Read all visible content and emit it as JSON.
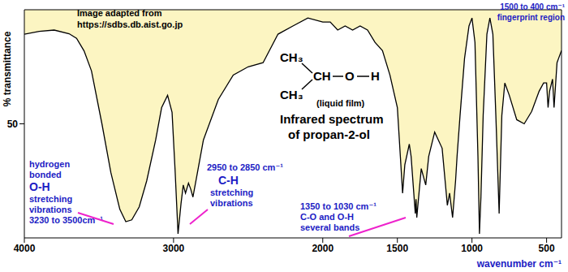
{
  "chart_data": {
    "type": "line",
    "color": "#000000",
    "grid": false,
    "x_label": "wavenumber cm⁻¹",
    "y_label": "% transmittance",
    "xlim": [
      4000,
      400
    ],
    "ylim": [
      0,
      100
    ],
    "xticks": [
      4000,
      3000,
      2000,
      1500,
      1000,
      500
    ],
    "yticks": [
      50
    ],
    "x": [
      4000,
      3900,
      3800,
      3700,
      3650,
      3600,
      3550,
      3480,
      3420,
      3360,
      3320,
      3280,
      3230,
      3180,
      3120,
      3080,
      3040,
      3010,
      2990,
      2970,
      2950,
      2935,
      2920,
      2900,
      2885,
      2870,
      2840,
      2800,
      2700,
      2600,
      2500,
      2400,
      2300,
      2200,
      2100,
      2000,
      1950,
      1900,
      1850,
      1800,
      1750,
      1700,
      1650,
      1600,
      1550,
      1500,
      1480,
      1465,
      1450,
      1420,
      1408,
      1380,
      1375,
      1370,
      1340,
      1310,
      1290,
      1250,
      1200,
      1165,
      1150,
      1130,
      1110,
      1100,
      1080,
      1050,
      1020,
      1000,
      980,
      960,
      950,
      940,
      925,
      900,
      880,
      860,
      840,
      818,
      800,
      780,
      750,
      700,
      650,
      600,
      550,
      520,
      500,
      490,
      480,
      460,
      450,
      430,
      420,
      400
    ],
    "values": [
      89.3,
      90.5,
      91.1,
      89.5,
      87.5,
      82,
      73.2,
      50,
      28.6,
      12.5,
      7.1,
      7.9,
      13.6,
      25,
      42.9,
      57.1,
      62.5,
      55,
      30,
      1.8,
      15,
      23.2,
      19.6,
      24,
      21.4,
      17.9,
      28.6,
      42.9,
      60.7,
      71.4,
      75,
      76.8,
      89.3,
      92.9,
      96.4,
      94.6,
      94.6,
      91.1,
      92.9,
      91.1,
      92.9,
      91.1,
      85.7,
      82.1,
      71.4,
      57.1,
      35.7,
      19.6,
      32.1,
      41.1,
      35.7,
      10.7,
      17,
      8.9,
      30.4,
      23.2,
      35.7,
      46.4,
      39.3,
      14.3,
      19.6,
      8.9,
      25,
      35.7,
      53.6,
      78.6,
      92.9,
      96.4,
      85.7,
      35.7,
      1.8,
      17.9,
      53.6,
      89.3,
      96.4,
      89.3,
      53.6,
      10.7,
      53.6,
      67.9,
      62.5,
      51.8,
      50,
      55.4,
      64.3,
      67.9,
      67.9,
      57.1,
      64.3,
      69.6,
      57.1,
      76.8,
      78.6,
      82.1
    ],
    "annotations": [
      {
        "text": [
          "Image adapted from",
          "https://sdbs.db.aist.go.jp"
        ]
      },
      {
        "text": [
          "1500 to 400 cm⁻¹",
          "fingerprint region"
        ]
      },
      {
        "text": [
          "Infrared spectrum",
          "of propan-2-ol"
        ]
      },
      {
        "text": [
          "(liquid film)"
        ]
      },
      {
        "text": [
          "hydrogen",
          "bonded",
          "O-H",
          "stretching",
          "vibrations",
          "3230 to 3500cm⁻¹"
        ]
      },
      {
        "text": [
          "2950 to 2850 cm⁻¹",
          "C-H",
          "stretching",
          "vibrations"
        ]
      },
      {
        "text": [
          "1350 to 1030 cm⁻¹",
          "C-O and O-H",
          "several bands"
        ]
      }
    ],
    "structure": [
      "CH₃",
      "CH",
      "O",
      "H",
      "CH₃"
    ]
  }
}
